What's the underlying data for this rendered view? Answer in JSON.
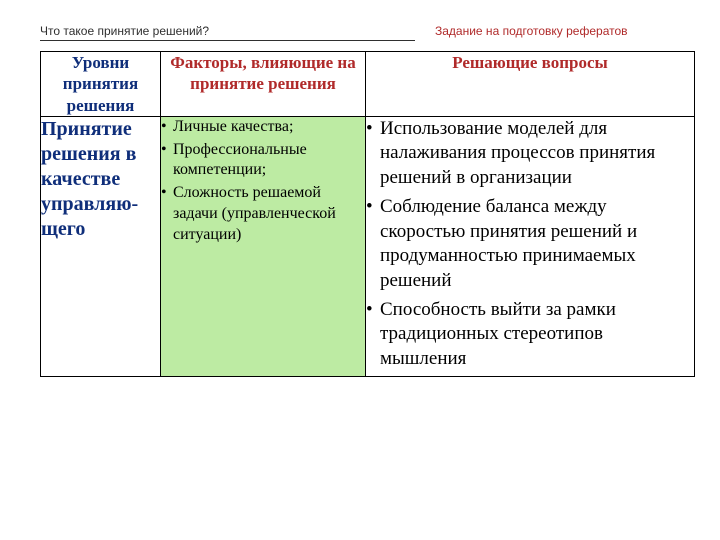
{
  "header": {
    "left": "Что такое принятие решений?",
    "right": "Задание на подготовку рефератов"
  },
  "table": {
    "columns": {
      "c1": "Уровни принятия решения",
      "c2": "Факторы, влияющие на принятие решения",
      "c3": "Решающие вопросы"
    },
    "row1": {
      "level": "Принятие решения в качестве управляю-щего",
      "factors": {
        "f0": "Личные качества;",
        "f1": "Профессиональные компетенции;",
        "f2": "Сложность решаемой задачи (управленческой ситуации)"
      },
      "questions": {
        "q0": "Использование моделей для налаживания процессов принятия решений в организации",
        "q1": "Соблюдение баланса между скоростью принятия решений и продуманностью принимаемых решений",
        "q2": "Способность выйти за рамки традиционных стереотипов мышления"
      }
    }
  },
  "style": {
    "accent_red": "#b02a2a",
    "accent_blue": "#0f2e7a",
    "factors_bg": "#bdeba3",
    "border_color": "#000000",
    "background": "#ffffff"
  }
}
